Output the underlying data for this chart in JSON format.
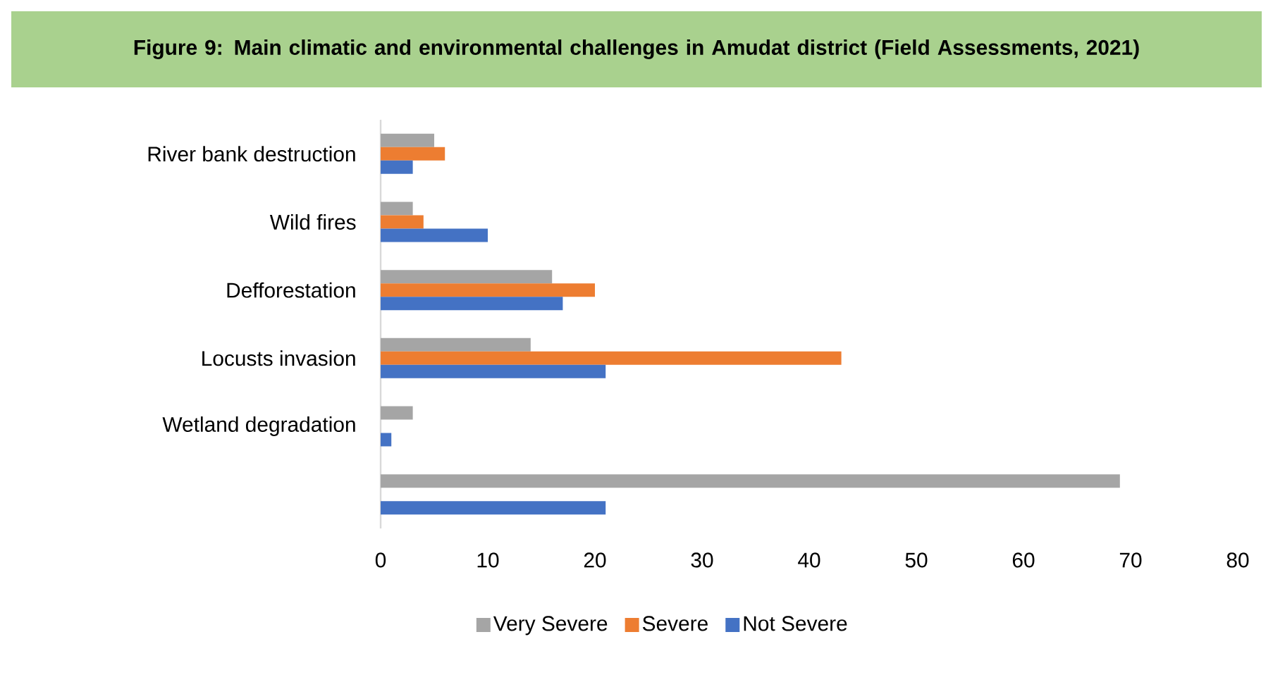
{
  "chart_data": {
    "type": "bar",
    "orientation": "horizontal",
    "title": "Figure 9: Main climatic and environmental challenges in Amudat district (Field Assessments, 2021)",
    "categories": [
      "River bank destruction",
      "Wild fires",
      "Defforestation",
      "Locusts invasion",
      "Wetland degradation",
      null
    ],
    "series": [
      {
        "name": "Very Severe",
        "color": "#a5a5a5",
        "values": [
          5,
          3,
          16,
          14,
          3,
          69
        ]
      },
      {
        "name": "Severe",
        "color": "#ed7d31",
        "values": [
          6,
          4,
          20,
          43,
          0,
          null
        ]
      },
      {
        "name": "Not Severe",
        "color": "#4472c4",
        "values": [
          3,
          10,
          17,
          21,
          1,
          21
        ]
      }
    ],
    "xlim": [
      0,
      80
    ],
    "xticks": [
      0,
      10,
      20,
      30,
      40,
      50,
      60,
      70,
      80
    ],
    "grid": false,
    "legend": "bottom"
  }
}
